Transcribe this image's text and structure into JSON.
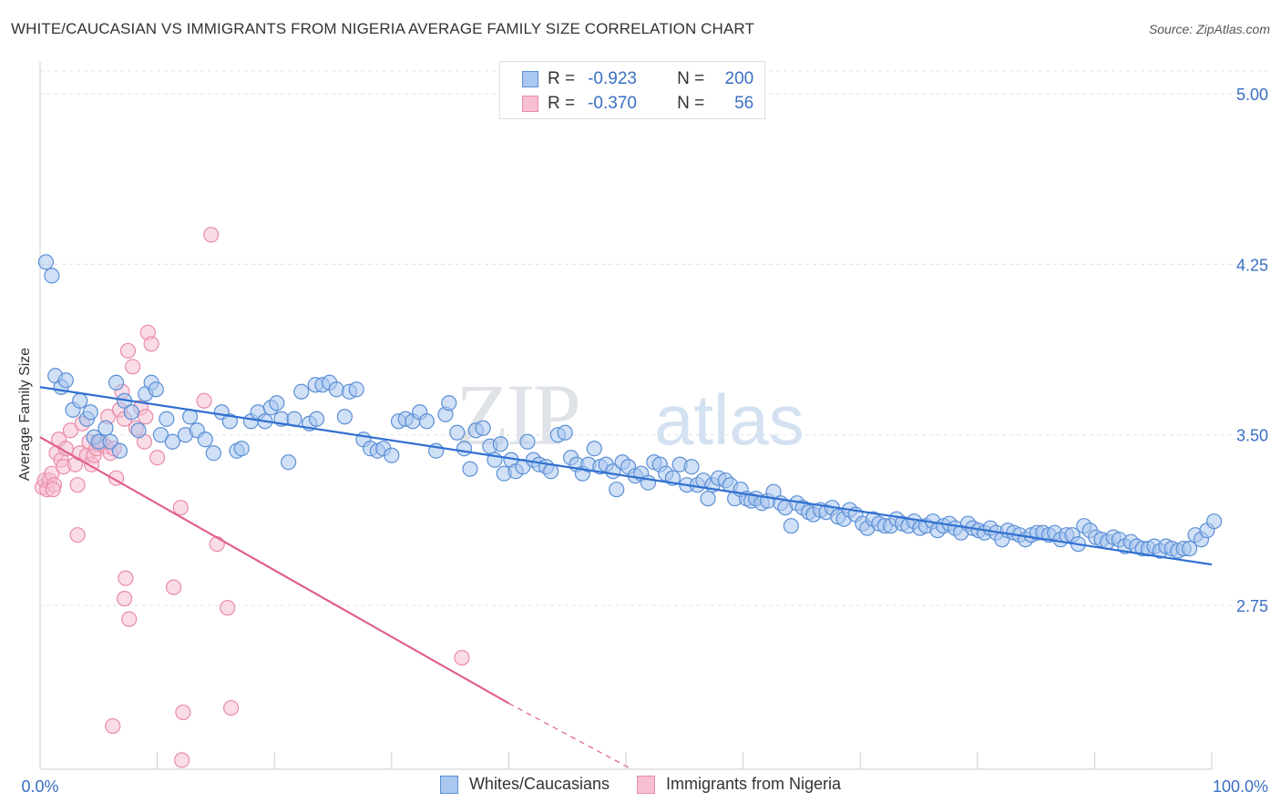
{
  "title": "WHITE/CAUCASIAN VS IMMIGRANTS FROM NIGERIA AVERAGE FAMILY SIZE CORRELATION CHART",
  "source": "Source: ZipAtlas.com",
  "watermark": {
    "zip": "ZIP",
    "atlas": "atlas"
  },
  "stats": [
    {
      "r_label": "R =",
      "r_value": "-0.923",
      "n_label": "N =",
      "n_value": "200"
    },
    {
      "r_label": "R =",
      "r_value": "-0.370",
      "n_label": "N =",
      "n_value": "56"
    }
  ],
  "colors": {
    "blue_fill": "#a9c7ef",
    "blue_stroke": "#5b8fd6",
    "blue_line": "#3070d0",
    "pink_fill": "#f6c0d2",
    "pink_stroke": "#e98bab",
    "pink_line": "#e0608c",
    "tick_label": "#3a6fc4",
    "grid": "#e3e3e3"
  },
  "chart_data": {
    "type": "scatter",
    "title": "WHITE/CAUCASIAN VS IMMIGRANTS FROM NIGERIA AVERAGE FAMILY SIZE CORRELATION CHART",
    "xlabel": "",
    "ylabel": "Average Family Size",
    "xlim": [
      0,
      100
    ],
    "ylim": [
      2.03,
      5.1
    ],
    "x_tick_labels": [
      "0.0%",
      "100.0%"
    ],
    "y_ticks": [
      2.75,
      3.5,
      4.25,
      5.0
    ],
    "y_tick_labels": [
      "2.75",
      "3.50",
      "4.25",
      "5.00"
    ],
    "grid": true,
    "legend_position": "bottom",
    "series": [
      {
        "name": "Whites/Caucasians",
        "color": "#5b8fd6",
        "trend": {
          "x": [
            0,
            100
          ],
          "y": [
            3.71,
            2.93
          ]
        },
        "points": [
          [
            0.5,
            4.26
          ],
          [
            1,
            4.2
          ],
          [
            1.3,
            3.76
          ],
          [
            1.8,
            3.71
          ],
          [
            2.2,
            3.74
          ],
          [
            2.8,
            3.61
          ],
          [
            3.4,
            3.65
          ],
          [
            4,
            3.57
          ],
          [
            4.3,
            3.6
          ],
          [
            4.6,
            3.49
          ],
          [
            5,
            3.47
          ],
          [
            5.6,
            3.53
          ],
          [
            6,
            3.47
          ],
          [
            6.5,
            3.73
          ],
          [
            6.8,
            3.43
          ],
          [
            7.2,
            3.65
          ],
          [
            7.8,
            3.6
          ],
          [
            8.4,
            3.52
          ],
          [
            9,
            3.68
          ],
          [
            9.5,
            3.73
          ],
          [
            9.9,
            3.7
          ],
          [
            10.3,
            3.5
          ],
          [
            10.8,
            3.57
          ],
          [
            11.3,
            3.47
          ],
          [
            12.4,
            3.5
          ],
          [
            12.8,
            3.58
          ],
          [
            13.4,
            3.52
          ],
          [
            14.1,
            3.48
          ],
          [
            14.8,
            3.42
          ],
          [
            15.5,
            3.6
          ],
          [
            16.2,
            3.56
          ],
          [
            16.8,
            3.43
          ],
          [
            17.2,
            3.44
          ],
          [
            18,
            3.56
          ],
          [
            18.6,
            3.6
          ],
          [
            19.2,
            3.56
          ],
          [
            19.7,
            3.62
          ],
          [
            20.2,
            3.64
          ],
          [
            20.6,
            3.57
          ],
          [
            21.2,
            3.38
          ],
          [
            21.7,
            3.57
          ],
          [
            22.3,
            3.69
          ],
          [
            23,
            3.55
          ],
          [
            23.6,
            3.57
          ],
          [
            23.5,
            3.72
          ],
          [
            24.1,
            3.72
          ],
          [
            24.7,
            3.73
          ],
          [
            25.3,
            3.7
          ],
          [
            26,
            3.58
          ],
          [
            26.4,
            3.69
          ],
          [
            27,
            3.7
          ],
          [
            27.6,
            3.48
          ],
          [
            28.2,
            3.44
          ],
          [
            28.8,
            3.43
          ],
          [
            29.3,
            3.44
          ],
          [
            30,
            3.41
          ],
          [
            30.6,
            3.56
          ],
          [
            31.2,
            3.57
          ],
          [
            31.8,
            3.56
          ],
          [
            32.4,
            3.6
          ],
          [
            33,
            3.56
          ],
          [
            33.8,
            3.43
          ],
          [
            34.6,
            3.59
          ],
          [
            34.9,
            3.64
          ],
          [
            35.6,
            3.51
          ],
          [
            36.2,
            3.44
          ],
          [
            36.7,
            3.35
          ],
          [
            37.2,
            3.52
          ],
          [
            37.8,
            3.53
          ],
          [
            38.4,
            3.45
          ],
          [
            38.8,
            3.39
          ],
          [
            39.3,
            3.46
          ],
          [
            39.6,
            3.33
          ],
          [
            40.2,
            3.39
          ],
          [
            40.6,
            3.34
          ],
          [
            41.2,
            3.36
          ],
          [
            41.6,
            3.47
          ],
          [
            42.1,
            3.39
          ],
          [
            42.6,
            3.37
          ],
          [
            43.2,
            3.36
          ],
          [
            43.6,
            3.34
          ],
          [
            44.2,
            3.5
          ],
          [
            44.8,
            3.51
          ],
          [
            45.3,
            3.4
          ],
          [
            45.8,
            3.37
          ],
          [
            46.3,
            3.33
          ],
          [
            46.8,
            3.37
          ],
          [
            47.3,
            3.44
          ],
          [
            47.8,
            3.36
          ],
          [
            48.3,
            3.37
          ],
          [
            48.9,
            3.34
          ],
          [
            49.2,
            3.26
          ],
          [
            49.7,
            3.38
          ],
          [
            50.2,
            3.36
          ],
          [
            50.8,
            3.32
          ],
          [
            51.3,
            3.33
          ],
          [
            51.9,
            3.29
          ],
          [
            52.4,
            3.38
          ],
          [
            52.9,
            3.37
          ],
          [
            53.4,
            3.33
          ],
          [
            54,
            3.31
          ],
          [
            54.6,
            3.37
          ],
          [
            55.2,
            3.28
          ],
          [
            55.6,
            3.36
          ],
          [
            56.1,
            3.28
          ],
          [
            56.6,
            3.3
          ],
          [
            57,
            3.22
          ],
          [
            57.4,
            3.28
          ],
          [
            57.9,
            3.31
          ],
          [
            58.5,
            3.3
          ],
          [
            58.9,
            3.28
          ],
          [
            59.3,
            3.22
          ],
          [
            59.8,
            3.26
          ],
          [
            60.3,
            3.22
          ],
          [
            60.7,
            3.21
          ],
          [
            61.1,
            3.22
          ],
          [
            61.6,
            3.2
          ],
          [
            62.1,
            3.21
          ],
          [
            62.6,
            3.25
          ],
          [
            63.2,
            3.2
          ],
          [
            63.6,
            3.18
          ],
          [
            64.1,
            3.1
          ],
          [
            64.6,
            3.2
          ],
          [
            65.1,
            3.18
          ],
          [
            65.6,
            3.16
          ],
          [
            66,
            3.15
          ],
          [
            66.6,
            3.17
          ],
          [
            67.1,
            3.16
          ],
          [
            67.6,
            3.18
          ],
          [
            68.1,
            3.14
          ],
          [
            68.6,
            3.13
          ],
          [
            69.1,
            3.17
          ],
          [
            69.6,
            3.15
          ],
          [
            70.2,
            3.11
          ],
          [
            70.6,
            3.09
          ],
          [
            71.1,
            3.13
          ],
          [
            71.6,
            3.11
          ],
          [
            72.1,
            3.1
          ],
          [
            72.6,
            3.1
          ],
          [
            73.1,
            3.13
          ],
          [
            73.6,
            3.11
          ],
          [
            74.1,
            3.1
          ],
          [
            74.6,
            3.12
          ],
          [
            75.1,
            3.09
          ],
          [
            75.6,
            3.1
          ],
          [
            76.2,
            3.12
          ],
          [
            76.6,
            3.08
          ],
          [
            77.1,
            3.1
          ],
          [
            77.6,
            3.11
          ],
          [
            78.1,
            3.09
          ],
          [
            78.6,
            3.07
          ],
          [
            79.2,
            3.11
          ],
          [
            79.6,
            3.09
          ],
          [
            80.1,
            3.08
          ],
          [
            80.6,
            3.07
          ],
          [
            81.1,
            3.09
          ],
          [
            81.6,
            3.07
          ],
          [
            82.1,
            3.04
          ],
          [
            82.6,
            3.08
          ],
          [
            83.1,
            3.07
          ],
          [
            83.6,
            3.06
          ],
          [
            84.1,
            3.04
          ],
          [
            84.6,
            3.06
          ],
          [
            85.1,
            3.07
          ],
          [
            85.6,
            3.07
          ],
          [
            86.1,
            3.06
          ],
          [
            86.6,
            3.07
          ],
          [
            87.1,
            3.04
          ],
          [
            87.6,
            3.06
          ],
          [
            88.1,
            3.06
          ],
          [
            88.6,
            3.02
          ],
          [
            89.1,
            3.1
          ],
          [
            89.6,
            3.08
          ],
          [
            90.1,
            3.05
          ],
          [
            90.6,
            3.04
          ],
          [
            91.1,
            3.03
          ],
          [
            91.6,
            3.05
          ],
          [
            92.1,
            3.04
          ],
          [
            92.6,
            3.01
          ],
          [
            93.1,
            3.03
          ],
          [
            93.6,
            3.01
          ],
          [
            94.1,
            3
          ],
          [
            94.6,
            3
          ],
          [
            95.1,
            3.01
          ],
          [
            95.6,
            2.99
          ],
          [
            96.1,
            3.01
          ],
          [
            96.6,
            3
          ],
          [
            97.1,
            2.99
          ],
          [
            97.6,
            3
          ],
          [
            98.1,
            3
          ],
          [
            98.6,
            3.06
          ],
          [
            99.1,
            3.04
          ],
          [
            99.6,
            3.08
          ],
          [
            100.2,
            3.12
          ]
        ]
      },
      {
        "name": "Immigrants from Nigeria",
        "color": "#e98bab",
        "trend": {
          "x": [
            0,
            40
          ],
          "y": [
            3.49,
            2.32
          ]
        },
        "trend_dashed": {
          "x": [
            40,
            50.5
          ],
          "y": [
            2.32,
            2.03
          ]
        },
        "points": [
          [
            0.2,
            3.27
          ],
          [
            0.4,
            3.3
          ],
          [
            0.6,
            3.26
          ],
          [
            0.8,
            3.3
          ],
          [
            1,
            3.33
          ],
          [
            1.2,
            3.28
          ],
          [
            1.4,
            3.42
          ],
          [
            1.6,
            3.48
          ],
          [
            1.8,
            3.39
          ],
          [
            2,
            3.36
          ],
          [
            2.2,
            3.44
          ],
          [
            2.6,
            3.52
          ],
          [
            3,
            3.37
          ],
          [
            3.2,
            3.28
          ],
          [
            3.4,
            3.42
          ],
          [
            3.6,
            3.55
          ],
          [
            4,
            3.41
          ],
          [
            4.2,
            3.47
          ],
          [
            4.4,
            3.37
          ],
          [
            4.6,
            3.41
          ],
          [
            4.8,
            3.44
          ],
          [
            5,
            3.46
          ],
          [
            5.2,
            3.47
          ],
          [
            5.6,
            3.45
          ],
          [
            5.8,
            3.58
          ],
          [
            6,
            3.42
          ],
          [
            6.3,
            3.44
          ],
          [
            6.5,
            3.31
          ],
          [
            6.8,
            3.61
          ],
          [
            7,
            3.69
          ],
          [
            7.2,
            3.57
          ],
          [
            7.5,
            3.87
          ],
          [
            7.9,
            3.8
          ],
          [
            8.2,
            3.53
          ],
          [
            8.6,
            3.62
          ],
          [
            8.9,
            3.47
          ],
          [
            9.2,
            3.95
          ],
          [
            9.5,
            3.9
          ],
          [
            10,
            3.4
          ],
          [
            12,
            3.18
          ],
          [
            14,
            3.65
          ],
          [
            14.6,
            4.38
          ],
          [
            15.1,
            3.02
          ],
          [
            3.2,
            3.06
          ],
          [
            7.3,
            2.87
          ],
          [
            7.6,
            2.69
          ],
          [
            7.2,
            2.78
          ],
          [
            11.4,
            2.83
          ],
          [
            16,
            2.74
          ],
          [
            36,
            2.52
          ],
          [
            12.2,
            2.28
          ],
          [
            16.3,
            2.3
          ],
          [
            6.2,
            2.22
          ],
          [
            12.1,
            2.07
          ],
          [
            9,
            3.58
          ],
          [
            1.1,
            3.26
          ]
        ]
      }
    ]
  },
  "legend": [
    {
      "label": "Whites/Caucasians"
    },
    {
      "label": "Immigrants from Nigeria"
    }
  ]
}
